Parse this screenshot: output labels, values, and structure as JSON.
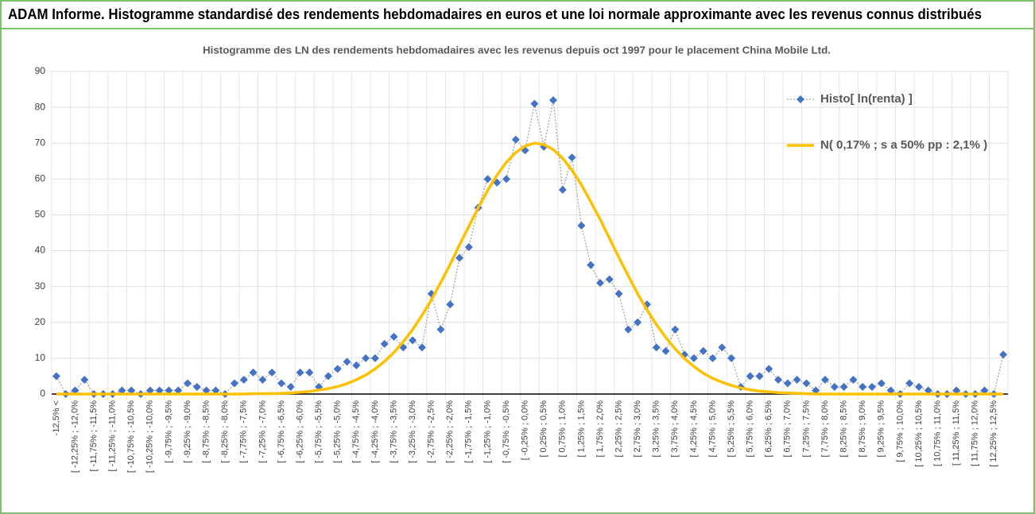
{
  "header": {
    "title": "ADAM Informe. Histogramme standardisé des rendements hebdomadaires en euros et une loi normale approximante avec les revenus connus distribués"
  },
  "chart_data": {
    "type": "line",
    "title": "Histogramme des LN des rendements hebdomadaires avec les revenus depuis oct 1997 pour le placement China Mobile Ltd.",
    "categories": [
      "-12,5% <",
      null,
      "[ -12,25% ; -12,0%",
      null,
      "[ -11,75% ; -11,5%",
      null,
      "[ -11,25% ; -11,0%",
      null,
      "[ -10,75% ; -10,5%",
      null,
      "[ -10,25% ; -10,0%",
      null,
      "[ -9,75% ; -9,5%",
      null,
      "[ -9,25% ; -9,0%",
      null,
      "[ -8,75% ; -8,5%",
      null,
      "[ -8,25% ; -8,0%",
      null,
      "[ -7,75% ; -7,5%",
      null,
      "[ -7,25% ; -7,0%",
      null,
      "[ -6,75% ; -6,5%",
      null,
      "[ -6,25% ; -6,0%",
      null,
      "[ -5,75% ; -5,5%",
      null,
      "[ -5,25% ; -5,0%",
      null,
      "[ -4,75% ; -4,5%",
      null,
      "[ -4,25% ; -4,0%",
      null,
      "[ -3,75% ; -3,5%",
      null,
      "[ -3,25% ; -3,0%",
      null,
      "[ -2,75% ; -2,5%",
      null,
      "[ -2,25% ; -2,0%",
      null,
      "[ -1,75% ; -1,5%",
      null,
      "[ -1,25% ; -1,0%",
      null,
      "[ -0,75% ; -0,5%",
      null,
      "[ -0,25% ; 0,0%",
      null,
      "[ 0,25% ; 0,5%",
      null,
      "[ 0,75% ; 1,0%",
      null,
      "[ 1,25% ; 1,5%",
      null,
      "[ 1,75% ; 2,0%",
      null,
      "[ 2,25% ; 2,5%",
      null,
      "[ 2,75% ; 3,0%",
      null,
      "[ 3,25% ; 3,5%",
      null,
      "[ 3,75% ; 4,0%",
      null,
      "[ 4,25% ; 4,5%",
      null,
      "[ 4,75% ; 5,0%",
      null,
      "[ 5,25% ; 5,5%",
      null,
      "[ 5,75% ; 6,0%",
      null,
      "[ 6,25% ; 6,5%",
      null,
      "[ 6,75% ; 7,0%",
      null,
      "[ 7,25% ; 7,5%",
      null,
      "[ 7,75% ; 8,0%",
      null,
      "[ 8,25% ; 8,5%",
      null,
      "[ 8,75% ; 9,0%",
      null,
      "[ 9,25% ; 9,5%",
      null,
      "[ 9,75% ; 10,0%",
      null,
      "[ 10,25% ; 10,5%",
      null,
      "[ 10,75% ; 11,0%",
      null,
      "[ 11,25% ; 11,5%",
      null,
      "[ 11,75% ; 12,0%",
      null,
      "[ 12,25% ; 12,5%",
      null
    ],
    "series": [
      {
        "name": "Histo[ ln(renta) ]",
        "color": "#4472c4",
        "line_color": "#a6a6a6",
        "marker": "diamond",
        "values": [
          5,
          0,
          1,
          4,
          0,
          0,
          0,
          1,
          1,
          0,
          1,
          1,
          1,
          1,
          3,
          2,
          1,
          1,
          0,
          3,
          4,
          6,
          4,
          6,
          3,
          2,
          6,
          6,
          2,
          5,
          7,
          9,
          8,
          10,
          10,
          14,
          16,
          13,
          15,
          13,
          28,
          18,
          25,
          38,
          41,
          52,
          60,
          59,
          60,
          71,
          68,
          81,
          69,
          82,
          57,
          66,
          47,
          36,
          31,
          32,
          28,
          18,
          20,
          25,
          13,
          12,
          18,
          11,
          10,
          12,
          10,
          13,
          10,
          2,
          5,
          5,
          7,
          4,
          3,
          4,
          3,
          1,
          4,
          2,
          2,
          4,
          2,
          2,
          3,
          1,
          0,
          3,
          2,
          1,
          0,
          0,
          1,
          0,
          0,
          1,
          0,
          11
        ]
      },
      {
        "name": "N( 0,17% ; s a 50% pp : 2,1% )",
        "color": "#ffc000",
        "values": [
          0,
          0,
          0,
          0,
          0,
          0,
          0,
          0,
          0,
          0,
          0,
          0,
          0,
          0,
          0,
          0,
          0,
          0,
          0,
          0,
          0,
          0.1,
          0.1,
          0.1,
          0.2,
          0.3,
          0.5,
          0.7,
          1.1,
          1.5,
          2.1,
          2.9,
          4.0,
          5.3,
          7.0,
          9.1,
          11.6,
          14.6,
          18.0,
          22.0,
          26.3,
          31.2,
          36.2,
          41.6,
          46.8,
          52.0,
          56.8,
          61.1,
          64.7,
          67.4,
          69.2,
          70.0,
          69.6,
          68.2,
          65.8,
          62.4,
          58.4,
          53.6,
          48.7,
          43.4,
          38.1,
          33.0,
          28.0,
          23.5,
          19.4,
          15.8,
          12.6,
          9.9,
          7.7,
          5.8,
          4.4,
          3.3,
          2.4,
          1.7,
          1.2,
          0.8,
          0.6,
          0.4,
          0.3,
          0.2,
          0.1,
          0,
          0,
          0,
          0,
          0,
          0,
          0,
          0,
          0,
          0,
          0,
          0,
          0,
          0,
          0,
          0,
          0,
          0,
          0,
          0,
          0
        ]
      }
    ],
    "ylim": [
      0,
      90
    ],
    "yticks": [
      0,
      10,
      20,
      30,
      40,
      50,
      60,
      70,
      80,
      90
    ],
    "grid": true,
    "legend": "top-right"
  }
}
